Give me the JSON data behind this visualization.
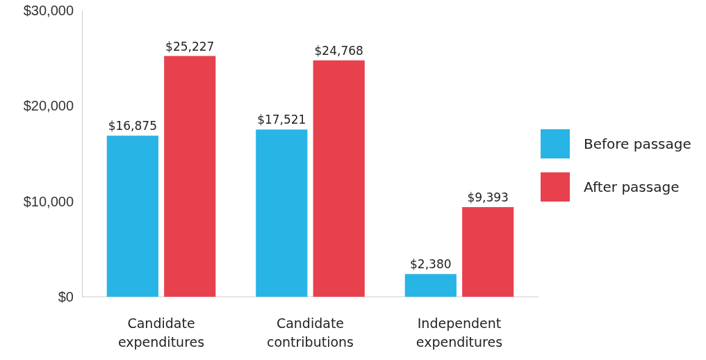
{
  "chart_data": {
    "type": "bar",
    "categories": [
      "Candidate expenditures",
      "Candidate contributions",
      "Independent expenditures"
    ],
    "series": [
      {
        "name": "Before passage",
        "color": "#29b4e6",
        "values": [
          16875,
          17521,
          2380
        ],
        "value_labels": [
          "$16,875",
          "$17,521",
          "$2,380"
        ]
      },
      {
        "name": "After passage",
        "color": "#e8414e",
        "values": [
          25227,
          24768,
          9393
        ],
        "value_labels": [
          "$25,227",
          "$24,768",
          "$9,393"
        ]
      }
    ],
    "ylim": [
      0,
      30000
    ],
    "yticks": [
      {
        "value": 0,
        "label": "$0"
      },
      {
        "value": 10000,
        "label": "$10,000"
      },
      {
        "value": 20000,
        "label": "$20,000"
      },
      {
        "value": 30000,
        "label": "$30,000"
      }
    ],
    "grid": false,
    "legend": "right"
  }
}
